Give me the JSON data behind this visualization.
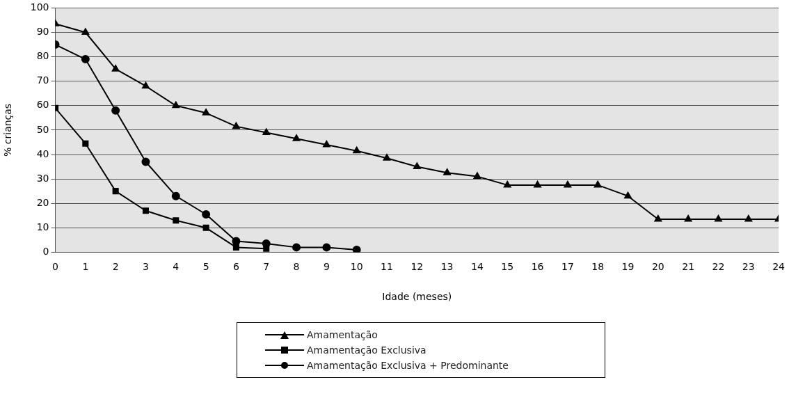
{
  "chart_data": {
    "type": "line",
    "xlabel": "Idade (meses)",
    "ylabel": "% crianças",
    "x": [
      0,
      1,
      2,
      3,
      4,
      5,
      6,
      7,
      8,
      9,
      10,
      11,
      12,
      13,
      14,
      15,
      16,
      17,
      18,
      19,
      20,
      21,
      22,
      23,
      24
    ],
    "xlim": [
      0,
      24
    ],
    "xticks": [
      0,
      1,
      2,
      3,
      4,
      5,
      6,
      7,
      8,
      9,
      10,
      11,
      12,
      13,
      14,
      15,
      16,
      17,
      18,
      19,
      20,
      21,
      22,
      23,
      24
    ],
    "ylim": [
      0,
      100
    ],
    "yticks": [
      0,
      10,
      20,
      30,
      40,
      50,
      60,
      70,
      80,
      90,
      100
    ],
    "grid": "y",
    "legend": "bottom",
    "series": [
      {
        "name": "Amamentação",
        "color": "#000000",
        "marker": "triangle",
        "values": [
          93.5,
          90,
          75,
          68,
          60,
          57,
          51.5,
          49,
          46.5,
          44,
          41.5,
          38.5,
          35,
          32.5,
          31,
          27.5,
          27.5,
          27.5,
          27.5,
          23,
          13.5,
          13.5,
          13.5,
          13.5,
          13.5
        ]
      },
      {
        "name": "Amamentação Exclusiva",
        "color": "#000000",
        "marker": "square",
        "x": [
          0,
          1,
          2,
          3,
          4,
          5,
          6,
          7
        ],
        "values": [
          59,
          44.5,
          25,
          17,
          13,
          10,
          2,
          1.5
        ]
      },
      {
        "name": "Amamentação Exclusiva + Predominante",
        "color": "#000000",
        "marker": "circle",
        "x": [
          0,
          1,
          2,
          3,
          4,
          5,
          6,
          7,
          8,
          9,
          10
        ],
        "values": [
          85,
          79,
          58,
          37,
          23,
          15.5,
          4.5,
          3.5,
          2,
          2,
          1
        ]
      }
    ]
  }
}
